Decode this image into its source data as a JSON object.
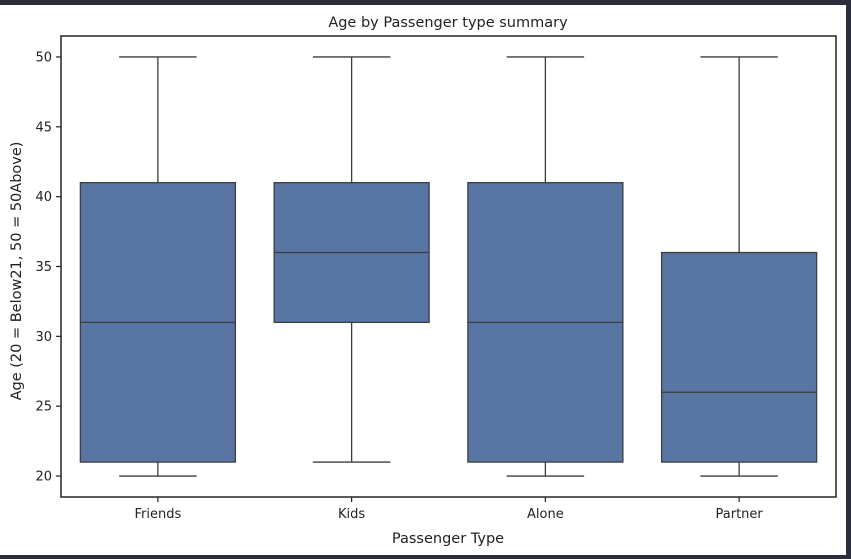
{
  "chart_data": {
    "type": "box",
    "title": "Age by Passenger type summary",
    "xlabel": "Passenger Type",
    "ylabel": "Age (20 = Below21, 50 = 50Above)",
    "ylim": [
      18.5,
      51.5
    ],
    "yticks": [
      20,
      25,
      30,
      35,
      40,
      45,
      50
    ],
    "categories": [
      "Friends",
      "Kids",
      "Alone",
      "Partner"
    ],
    "boxes": [
      {
        "category": "Friends",
        "min": 20,
        "q1": 21,
        "median": 31,
        "q3": 41,
        "max": 50
      },
      {
        "category": "Kids",
        "min": 21,
        "q1": 31,
        "median": 36,
        "q3": 41,
        "max": 50
      },
      {
        "category": "Alone",
        "min": 20,
        "q1": 21,
        "median": 31,
        "q3": 41,
        "max": 50
      },
      {
        "category": "Partner",
        "min": 20,
        "q1": 21,
        "median": 26,
        "q3": 36,
        "max": 50
      }
    ],
    "box_color": "#5875a4",
    "line_color": "#3d3d3d",
    "grid": false,
    "legend": "none"
  }
}
